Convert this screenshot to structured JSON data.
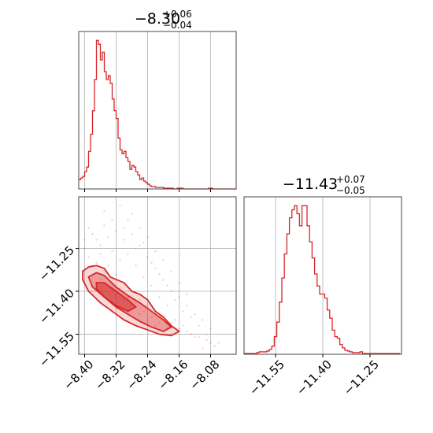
{
  "chart_data": [
    {
      "type": "histogram",
      "panel": "top-left",
      "color": "#d62728",
      "title": {
        "main": "−8.30",
        "sup": "+0.06",
        "sub": "−0.04"
      },
      "xlim": [
        -8.415,
        -8.015
      ],
      "xticks": [
        -8.4,
        -8.32,
        -8.24,
        -8.16,
        -8.08
      ],
      "grid": true,
      "bin_edges_start": -8.415,
      "bin_width": 0.005,
      "counts": [
        12,
        14,
        16,
        22,
        28,
        48,
        70,
        100,
        140,
        190,
        185,
        165,
        175,
        150,
        140,
        145,
        135,
        115,
        100,
        90,
        65,
        50,
        45,
        48,
        40,
        35,
        25,
        30,
        28,
        22,
        18,
        12,
        14,
        10,
        8,
        6,
        4,
        3,
        3,
        2,
        2,
        2,
        2,
        1,
        1,
        1,
        1,
        1,
        0,
        0,
        1,
        1,
        1,
        0,
        0,
        0,
        0,
        0,
        0,
        0,
        0,
        0,
        0,
        0,
        0,
        0,
        1,
        1,
        0,
        0,
        0,
        0,
        0,
        0,
        0,
        0,
        0,
        0,
        0,
        0
      ]
    },
    {
      "type": "histogram",
      "panel": "bottom-right",
      "color": "#d62728",
      "title": {
        "main": "−11.43",
        "sup": "+0.07",
        "sub": "−0.05"
      },
      "xlim": [
        -11.65,
        -11.15
      ],
      "xticks": [
        -11.55,
        -11.4,
        -11.25
      ],
      "grid": true,
      "bin_edges_start": -11.65,
      "bin_width": 0.008,
      "counts": [
        1,
        1,
        1,
        1,
        1,
        2,
        3,
        3,
        3,
        4,
        6,
        10,
        22,
        40,
        65,
        95,
        125,
        150,
        170,
        180,
        185,
        175,
        160,
        185,
        185,
        160,
        140,
        120,
        100,
        85,
        75,
        75,
        70,
        55,
        45,
        30,
        22,
        20,
        12,
        8,
        5,
        4,
        3,
        2,
        2,
        2,
        3,
        1,
        1,
        1,
        1,
        1,
        1,
        1,
        1,
        1,
        1,
        1,
        1,
        1,
        1,
        1
      ]
    },
    {
      "type": "scatter",
      "panel": "bottom-left",
      "color": "#d62728",
      "xlim": [
        -8.415,
        -8.015
      ],
      "ylim": [
        -11.62,
        -11.07
      ],
      "xticks": [
        -8.4,
        -8.32,
        -8.24,
        -8.16,
        -8.08
      ],
      "yticks": [
        -11.25,
        -11.4,
        -11.55
      ],
      "grid": true,
      "points": [
        [
          -8.4,
          -11.22
        ],
        [
          -8.38,
          -11.2
        ],
        [
          -8.35,
          -11.17
        ],
        [
          -8.3,
          -11.22
        ],
        [
          -8.28,
          -11.2
        ],
        [
          -8.26,
          -11.24
        ],
        [
          -8.24,
          -11.28
        ],
        [
          -8.22,
          -11.32
        ],
        [
          -8.2,
          -11.36
        ],
        [
          -8.18,
          -11.4
        ],
        [
          -8.16,
          -11.42
        ],
        [
          -8.14,
          -11.45
        ],
        [
          -8.12,
          -11.48
        ],
        [
          -8.1,
          -11.5
        ],
        [
          -8.08,
          -11.53
        ],
        [
          -8.06,
          -11.58
        ],
        [
          -8.33,
          -11.26
        ],
        [
          -8.31,
          -11.29
        ],
        [
          -8.29,
          -11.27
        ],
        [
          -8.27,
          -11.31
        ],
        [
          -8.25,
          -11.35
        ],
        [
          -8.23,
          -11.38
        ],
        [
          -8.21,
          -11.42
        ],
        [
          -8.19,
          -11.45
        ],
        [
          -8.17,
          -11.5
        ],
        [
          -8.15,
          -11.52
        ],
        [
          -8.13,
          -11.55
        ],
        [
          -8.11,
          -11.56
        ],
        [
          -8.09,
          -11.57
        ],
        [
          -8.07,
          -11.59
        ],
        [
          -8.36,
          -11.24
        ],
        [
          -8.34,
          -11.21
        ],
        [
          -8.32,
          -11.19
        ],
        [
          -8.29,
          -11.15
        ],
        [
          -8.26,
          -11.18
        ],
        [
          -8.22,
          -11.26
        ],
        [
          -8.2,
          -11.29
        ],
        [
          -8.18,
          -11.33
        ],
        [
          -8.16,
          -11.37
        ],
        [
          -8.14,
          -11.41
        ],
        [
          -8.37,
          -11.3
        ],
        [
          -8.35,
          -11.33
        ],
        [
          -8.33,
          -11.36
        ],
        [
          -8.31,
          -11.39
        ],
        [
          -8.29,
          -11.42
        ],
        [
          -8.27,
          -11.44
        ],
        [
          -8.25,
          -11.47
        ],
        [
          -8.23,
          -11.49
        ],
        [
          -8.21,
          -11.51
        ],
        [
          -8.19,
          -11.53
        ],
        [
          -8.4,
          -11.25
        ],
        [
          -8.39,
          -11.28
        ],
        [
          -8.38,
          -11.31
        ],
        [
          -8.36,
          -11.36
        ],
        [
          -8.34,
          -11.38
        ],
        [
          -8.32,
          -11.41
        ],
        [
          -8.3,
          -11.43
        ],
        [
          -8.28,
          -11.46
        ],
        [
          -8.26,
          -11.48
        ],
        [
          -8.24,
          -11.5
        ],
        [
          -8.22,
          -11.52
        ],
        [
          -8.2,
          -11.54
        ],
        [
          -8.18,
          -11.55
        ],
        [
          -8.1,
          -11.6
        ],
        [
          -8.31,
          -11.1
        ],
        [
          -8.28,
          -11.13
        ],
        [
          -8.25,
          -11.23
        ],
        [
          -8.24,
          -11.21
        ],
        [
          -8.23,
          -11.3
        ],
        [
          -8.21,
          -11.34
        ],
        [
          -8.19,
          -11.38
        ],
        [
          -8.17,
          -11.43
        ],
        [
          -8.15,
          -11.47
        ],
        [
          -8.13,
          -11.49
        ],
        [
          -8.11,
          -11.52
        ],
        [
          -8.09,
          -11.55
        ],
        [
          -8.35,
          -11.12
        ],
        [
          -8.33,
          -11.15
        ],
        [
          -8.3,
          -11.18
        ],
        [
          -8.27,
          -11.25
        ],
        [
          -8.39,
          -11.18
        ],
        [
          -8.37,
          -11.22
        ],
        [
          -8.36,
          -11.27
        ],
        [
          -8.34,
          -11.31
        ],
        [
          -8.32,
          -11.34
        ],
        [
          -8.3,
          -11.37
        ],
        [
          -8.28,
          -11.4
        ],
        [
          -8.26,
          -11.43
        ],
        [
          -8.24,
          -11.45
        ],
        [
          -8.22,
          -11.47
        ],
        [
          -8.2,
          -11.49
        ],
        [
          -8.18,
          -11.51
        ],
        [
          -8.16,
          -11.53
        ],
        [
          -8.14,
          -11.54
        ],
        [
          -8.12,
          -11.56
        ],
        [
          -8.08,
          -11.58
        ]
      ],
      "contours": [
        {
          "level": "outer",
          "path": [
            [
              -8.405,
              -11.33
            ],
            [
              -8.39,
              -11.315
            ],
            [
              -8.37,
              -11.31
            ],
            [
              -8.35,
              -11.32
            ],
            [
              -8.335,
              -11.35
            ],
            [
              -8.3,
              -11.37
            ],
            [
              -8.28,
              -11.4
            ],
            [
              -8.26,
              -11.41
            ],
            [
              -8.24,
              -11.43
            ],
            [
              -8.22,
              -11.47
            ],
            [
              -8.2,
              -11.49
            ],
            [
              -8.18,
              -11.52
            ],
            [
              -8.16,
              -11.54
            ],
            [
              -8.18,
              -11.555
            ],
            [
              -8.21,
              -11.55
            ],
            [
              -8.24,
              -11.535
            ],
            [
              -8.27,
              -11.52
            ],
            [
              -8.3,
              -11.5
            ],
            [
              -8.33,
              -11.47
            ],
            [
              -8.36,
              -11.44
            ],
            [
              -8.39,
              -11.4
            ],
            [
              -8.405,
              -11.36
            ]
          ]
        },
        {
          "level": "middle",
          "path": [
            [
              -8.39,
              -11.35
            ],
            [
              -8.37,
              -11.335
            ],
            [
              -8.35,
              -11.345
            ],
            [
              -8.32,
              -11.385
            ],
            [
              -8.29,
              -11.415
            ],
            [
              -8.26,
              -11.44
            ],
            [
              -8.23,
              -11.47
            ],
            [
              -8.2,
              -11.5
            ],
            [
              -8.18,
              -11.525
            ],
            [
              -8.2,
              -11.54
            ],
            [
              -8.23,
              -11.525
            ],
            [
              -8.26,
              -11.505
            ],
            [
              -8.29,
              -11.48
            ],
            [
              -8.32,
              -11.455
            ],
            [
              -8.35,
              -11.42
            ],
            [
              -8.38,
              -11.385
            ]
          ]
        },
        {
          "level": "inner",
          "path": [
            [
              -8.37,
              -11.37
            ],
            [
              -8.35,
              -11.37
            ],
            [
              -8.32,
              -11.4
            ],
            [
              -8.29,
              -11.43
            ],
            [
              -8.27,
              -11.455
            ],
            [
              -8.29,
              -11.47
            ],
            [
              -8.32,
              -11.45
            ],
            [
              -8.35,
              -11.42
            ],
            [
              -8.37,
              -11.39
            ]
          ]
        }
      ]
    }
  ]
}
